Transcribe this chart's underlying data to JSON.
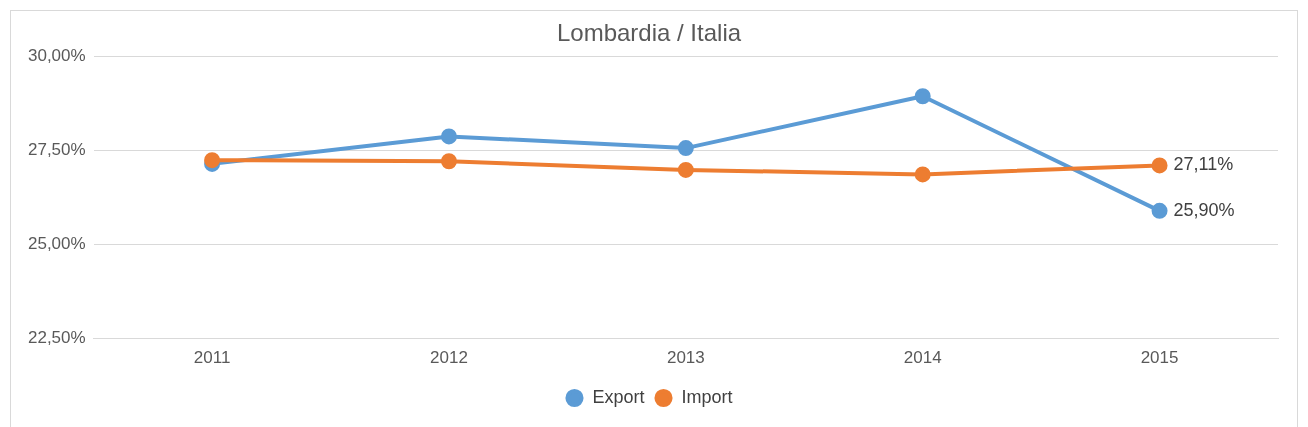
{
  "chart_data": {
    "type": "line",
    "title": "Lombardia / Italia",
    "categories": [
      "2011",
      "2012",
      "2013",
      "2014",
      "2015"
    ],
    "series": [
      {
        "name": "Export",
        "color": "#5b9bd5",
        "values": [
          27.15,
          27.88,
          27.57,
          28.95,
          25.9
        ],
        "value_labels": [
          null,
          null,
          null,
          null,
          "25,90%"
        ]
      },
      {
        "name": "Import",
        "color": "#ed7d31",
        "values": [
          27.25,
          27.22,
          26.99,
          26.87,
          27.11
        ],
        "value_labels": [
          null,
          null,
          null,
          null,
          "27,11%"
        ]
      }
    ],
    "ylim": [
      22.5,
      30
    ],
    "yticks": [
      {
        "value": 22.5,
        "label": "22,50%"
      },
      {
        "value": 25,
        "label": "25,00%"
      },
      {
        "value": 27.5,
        "label": "27,50%"
      },
      {
        "value": 30,
        "label": "30,00%"
      }
    ],
    "grid": "y",
    "legend": "bottom",
    "marker": "circle",
    "line_style": "solid"
  }
}
